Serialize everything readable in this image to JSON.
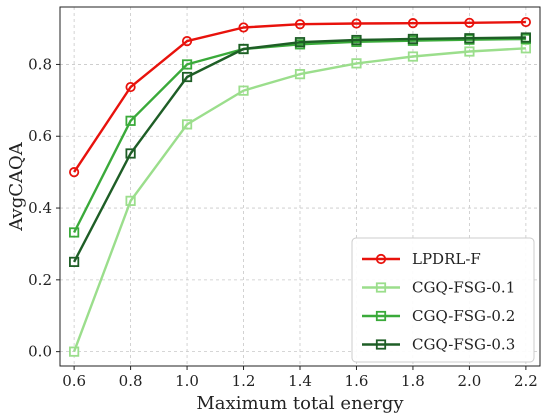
{
  "chart_data": {
    "type": "line",
    "xlabel": "Maximum total energy",
    "ylabel": "AvgCAQA",
    "x": [
      0.6,
      0.8,
      1.0,
      1.2,
      1.4,
      1.6,
      1.8,
      2.0,
      2.2
    ],
    "x_tick_labels": [
      "0.6",
      "0.8",
      "1.0",
      "1.2",
      "1.4",
      "1.6",
      "1.8",
      "2.0",
      "2.2"
    ],
    "y_tick_values": [
      0.0,
      0.2,
      0.4,
      0.6,
      0.8
    ],
    "y_tick_labels": [
      "0.0",
      "0.2",
      "0.4",
      "0.6",
      "0.8"
    ],
    "xlim": [
      0.55,
      2.25
    ],
    "ylim": [
      -0.04,
      0.96
    ],
    "grid": true,
    "legend_position": "lower right",
    "series": [
      {
        "name": "LPDRL-F",
        "color": "#e8120c",
        "marker": "circle",
        "values": [
          0.5,
          0.737,
          0.865,
          0.903,
          0.912,
          0.914,
          0.915,
          0.916,
          0.918
        ]
      },
      {
        "name": "CGQ-FSG-0.1",
        "color": "#9bde8c",
        "marker": "square",
        "values": [
          0.0,
          0.42,
          0.633,
          0.727,
          0.773,
          0.803,
          0.822,
          0.836,
          0.845
        ]
      },
      {
        "name": "CGQ-FSG-0.2",
        "color": "#3aaa3a",
        "marker": "square",
        "values": [
          0.332,
          0.643,
          0.8,
          0.843,
          0.856,
          0.863,
          0.866,
          0.869,
          0.871
        ]
      },
      {
        "name": "CGQ-FSG-0.3",
        "color": "#1e5e26",
        "marker": "square",
        "values": [
          0.25,
          0.552,
          0.765,
          0.843,
          0.862,
          0.868,
          0.871,
          0.873,
          0.875
        ]
      }
    ]
  }
}
